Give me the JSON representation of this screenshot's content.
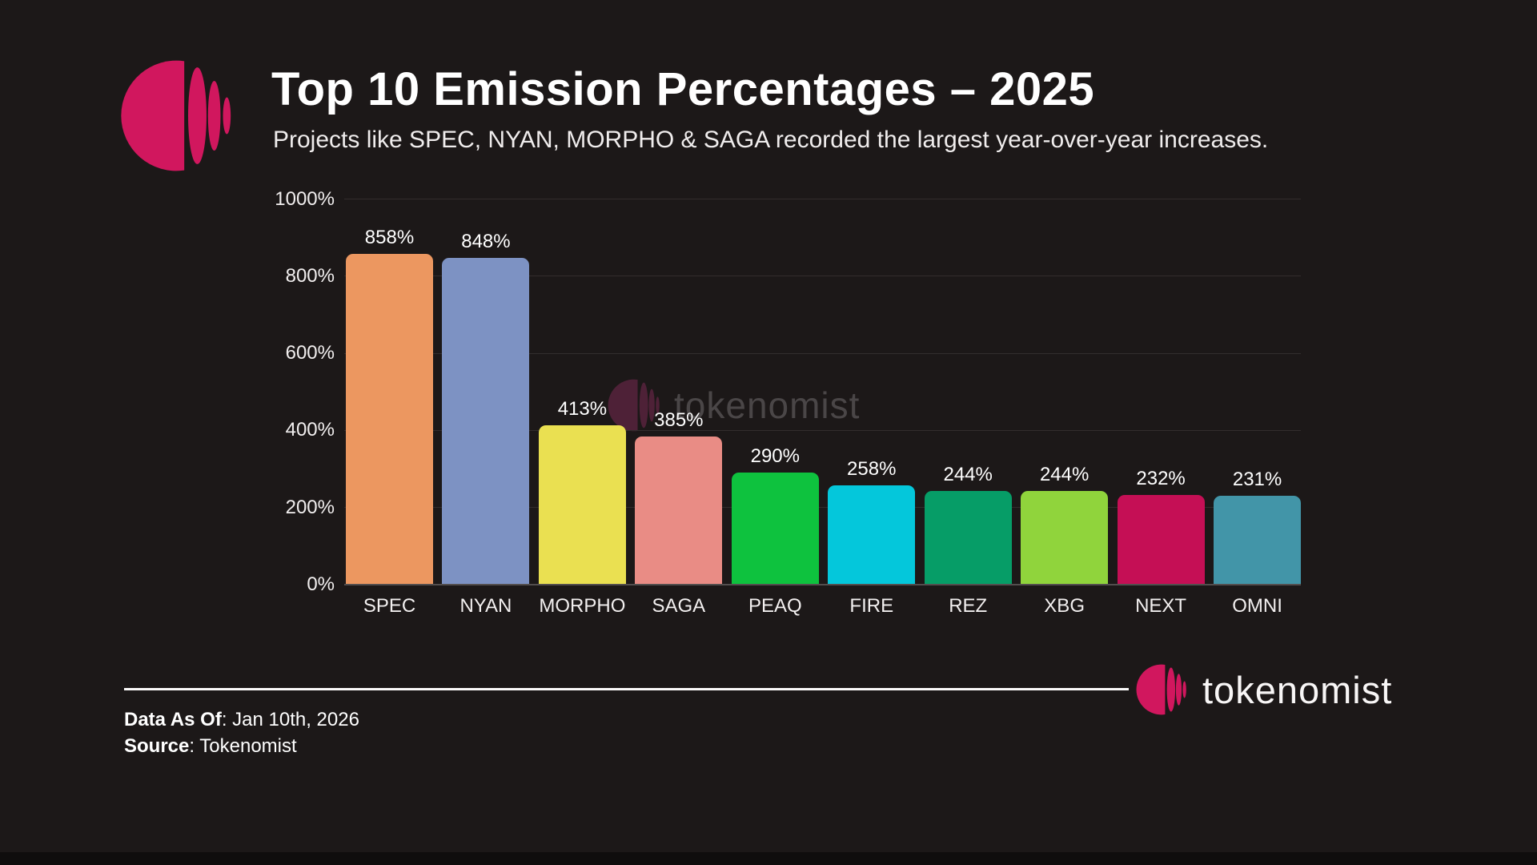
{
  "header": {
    "title": "Top 10 Emission Percentages – 2025",
    "subtitle": "Projects like SPEC, NYAN, MORPHO & SAGA recorded the largest year-over-year increases."
  },
  "brand": {
    "name": "tokenomist",
    "accent_color": "#D1175E"
  },
  "watermark": {
    "text": "tokenomist"
  },
  "footer": {
    "data_as_of_label": "Data As Of",
    "data_as_of_value": ": Jan 10th, 2026",
    "source_label": "Source",
    "source_value": ": Tokenomist",
    "logo_text": "tokenomist"
  },
  "chart_data": {
    "type": "bar",
    "title": "Top 10 Emission Percentages – 2025",
    "categories": [
      "SPEC",
      "NYAN",
      "MORPHO",
      "SAGA",
      "PEAQ",
      "FIRE",
      "REZ",
      "XBG",
      "NEXT",
      "OMNI"
    ],
    "values": [
      858,
      848,
      413,
      385,
      290,
      258,
      244,
      244,
      232,
      231
    ],
    "unit": "%",
    "bar_colors": [
      "#EC9760",
      "#7D92C3",
      "#EAE051",
      "#E98C85",
      "#0EC23E",
      "#04C7DB",
      "#069D67",
      "#90D43C",
      "#C50F55",
      "#4295A8"
    ],
    "xlabel": "",
    "ylabel": "",
    "ylim": [
      0,
      1000
    ],
    "yticks": [
      0,
      200,
      400,
      600,
      800,
      1000
    ],
    "ytick_labels": [
      "0%",
      "200%",
      "400%",
      "600%",
      "800%",
      "1000%"
    ],
    "grid": true,
    "legend": false,
    "background_color": "#1C1818"
  }
}
